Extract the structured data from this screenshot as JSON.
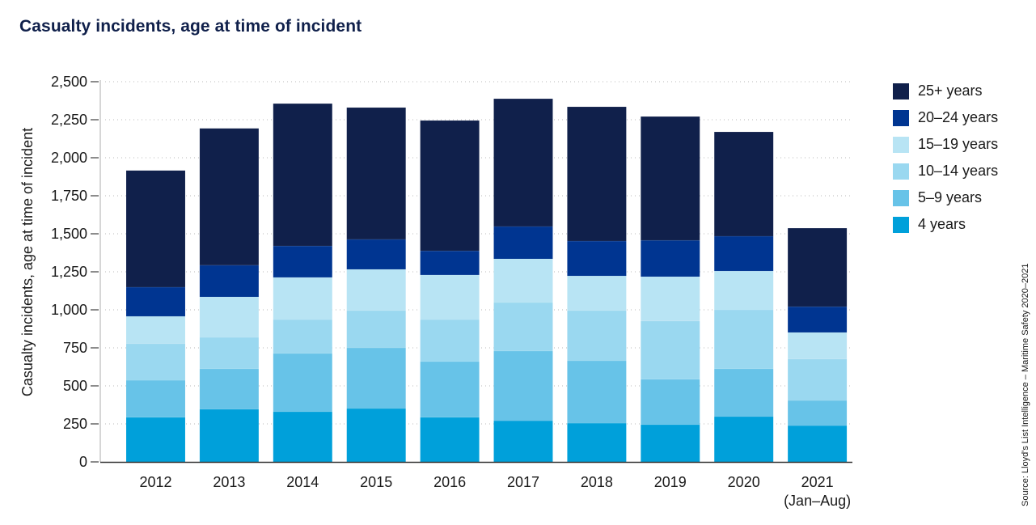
{
  "title": "Casualty incidents, age at time of incident",
  "source": "Source: Lloyd's List Intelligence – Maritime Safety 2020–2021",
  "chart_data": {
    "type": "bar",
    "stacked": true,
    "title": "Casualty incidents, age at time of incident",
    "xlabel": "",
    "ylabel": "Casualty incidents, age at time of incident",
    "ylim": [
      0,
      2500
    ],
    "yticks": [
      0,
      250,
      500,
      750,
      1000,
      1250,
      1500,
      1750,
      2000,
      2250,
      2500
    ],
    "ytick_labels": [
      "0",
      "250",
      "500",
      "750",
      "1,000",
      "1,250",
      "1,500",
      "1,750",
      "2,000",
      "2,250",
      "2,500"
    ],
    "grid": "horizontal-dotted",
    "legend_position": "right",
    "categories": [
      "2012",
      "2013",
      "2014",
      "2015",
      "2016",
      "2017",
      "2018",
      "2019",
      "2020",
      "2021"
    ],
    "category_sublabels": [
      "",
      "",
      "",
      "",
      "",
      "",
      "",
      "",
      "",
      "(Jan–Aug)"
    ],
    "series": [
      {
        "name": "4 years",
        "color": "#00A0DA",
        "values": [
          293,
          346,
          330,
          351,
          293,
          271,
          255,
          245,
          298,
          239
        ]
      },
      {
        "name": "5–9 years",
        "color": "#67C3E8",
        "values": [
          244,
          266,
          383,
          399,
          367,
          458,
          410,
          298,
          314,
          165
        ]
      },
      {
        "name": "10–14 years",
        "color": "#9AD8F0",
        "values": [
          240,
          207,
          223,
          245,
          276,
          319,
          330,
          383,
          388,
          272
        ]
      },
      {
        "name": "15–19 years",
        "color": "#B8E4F4",
        "values": [
          180,
          266,
          277,
          271,
          293,
          287,
          228,
          292,
          255,
          175
        ]
      },
      {
        "name": "20–24 years",
        "color": "#003591",
        "values": [
          192,
          208,
          207,
          197,
          159,
          213,
          229,
          239,
          229,
          170
        ]
      },
      {
        "name": "25+ years",
        "color": "#10204B",
        "values": [
          767,
          900,
          936,
          867,
          857,
          840,
          883,
          814,
          686,
          516
        ]
      }
    ],
    "legend_order": [
      "25+ years",
      "20–24 years",
      "15–19 years",
      "10–14 years",
      "5–9 years",
      "4 years"
    ]
  }
}
